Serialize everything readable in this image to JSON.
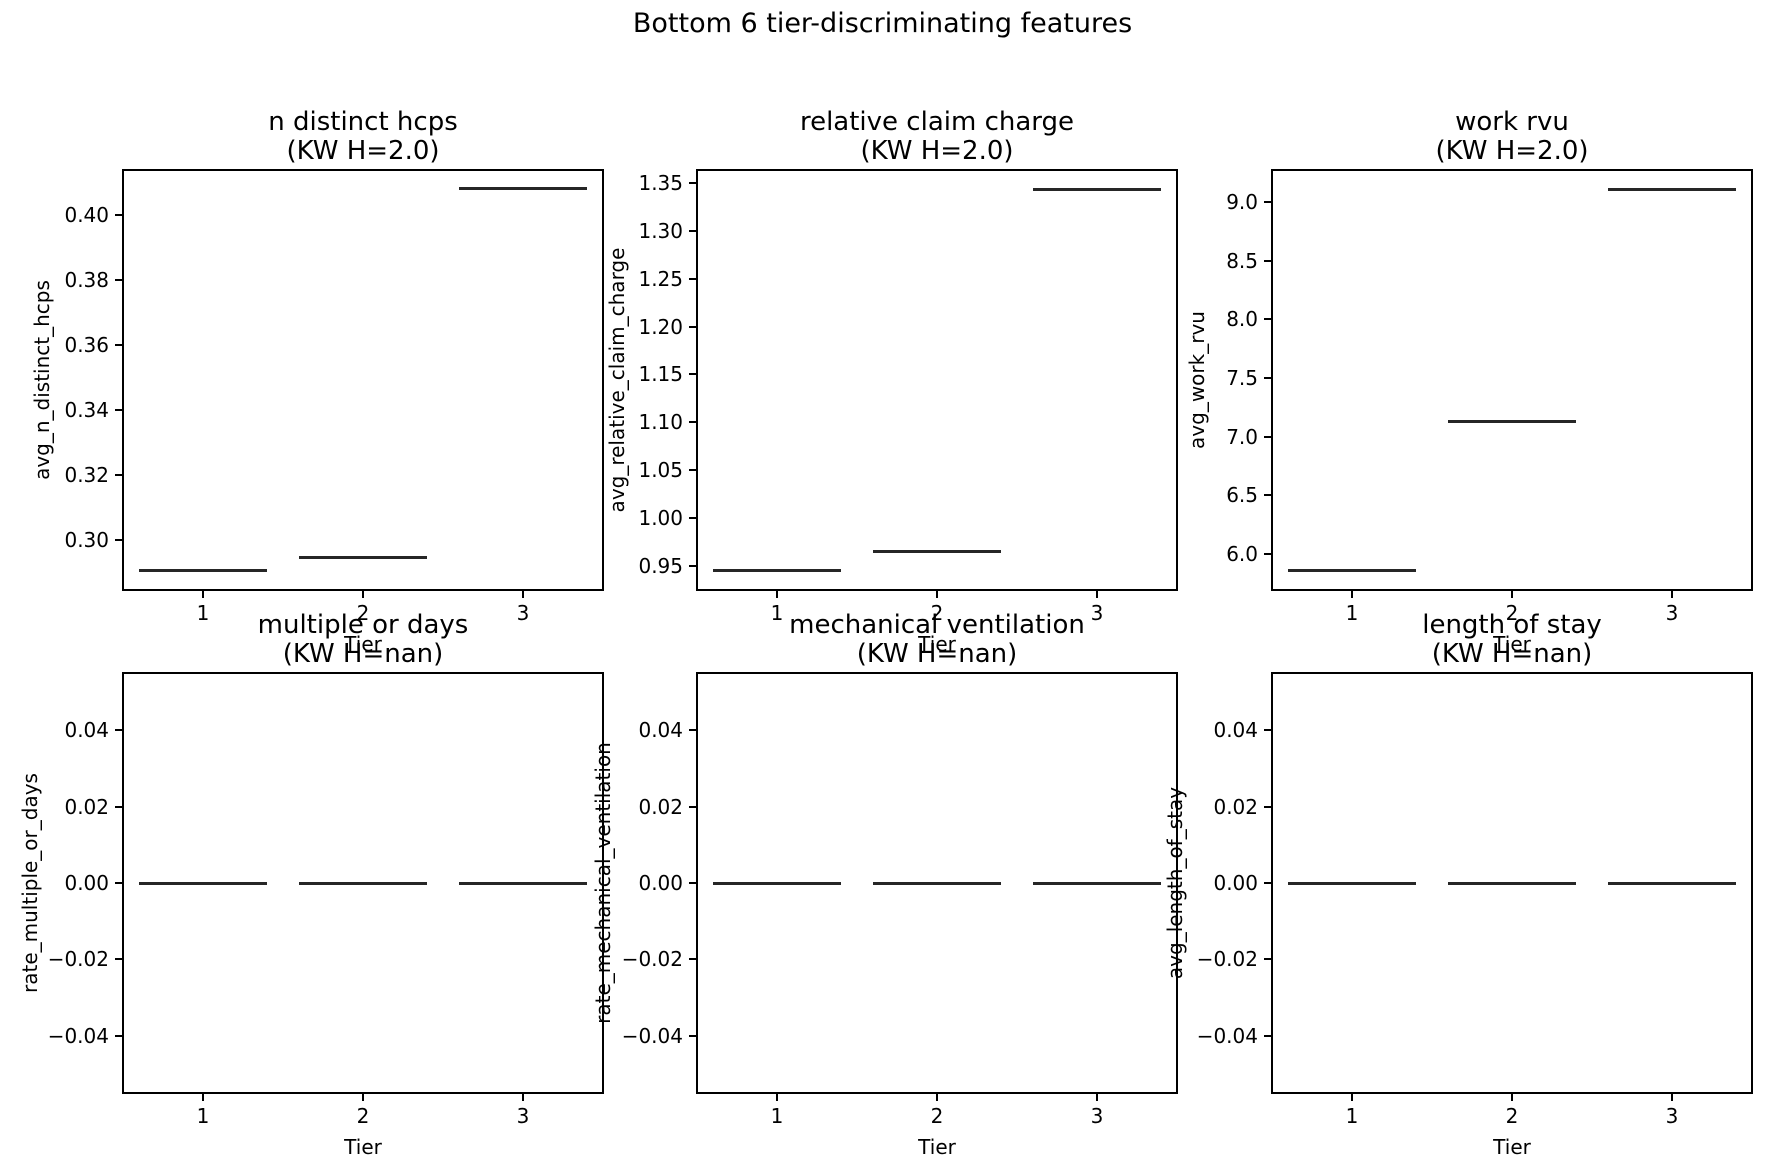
{
  "figure": {
    "suptitle": "Bottom 6 tier-discriminating features",
    "background": "#ffffff",
    "text_color": "#000000",
    "spine_color": "#000000",
    "median_line_color": "#262626"
  },
  "chart_data": [
    {
      "type": "boxplot",
      "title": "n distinct hcps",
      "subtitle": "(KW H=2.0)",
      "xlabel": "Tier",
      "ylabel": "avg_n_distinct_hcps",
      "categories": [
        1,
        2,
        3
      ],
      "xtick_labels": [
        "1",
        "2",
        "3"
      ],
      "values": [
        0.2905,
        0.2945,
        0.4083
      ],
      "ytick_values": [
        0.3,
        0.32,
        0.34,
        0.36,
        0.38,
        0.4
      ],
      "ytick_labels": [
        "0.30",
        "0.32",
        "0.34",
        "0.36",
        "0.38",
        "0.40"
      ],
      "ylim": [
        0.2846,
        0.4139
      ],
      "xlim": [
        0.5,
        3.5
      ],
      "box_half_width": 0.4,
      "grid": false,
      "legend": false
    },
    {
      "type": "boxplot",
      "title": "relative claim charge",
      "subtitle": "(KW H=2.0)",
      "xlabel": "Tier",
      "ylabel": "avg_relative_claim_charge",
      "categories": [
        1,
        2,
        3
      ],
      "xtick_labels": [
        "1",
        "2",
        "3"
      ],
      "values": [
        0.945,
        0.9655,
        1.3435
      ],
      "ytick_values": [
        0.95,
        1.0,
        1.05,
        1.1,
        1.15,
        1.2,
        1.25,
        1.3,
        1.35
      ],
      "ytick_labels": [
        "0.95",
        "1.00",
        "1.05",
        "1.10",
        "1.15",
        "1.20",
        "1.25",
        "1.30",
        "1.35"
      ],
      "ylim": [
        0.9251,
        1.3634
      ],
      "xlim": [
        0.5,
        3.5
      ],
      "box_half_width": 0.4,
      "grid": false,
      "legend": false
    },
    {
      "type": "boxplot",
      "title": "work rvu",
      "subtitle": "(KW H=2.0)",
      "xlabel": "Tier",
      "ylabel": "avg_work_rvu",
      "categories": [
        1,
        2,
        3
      ],
      "xtick_labels": [
        "1",
        "2",
        "3"
      ],
      "values": [
        5.855,
        7.13,
        9.11
      ],
      "ytick_values": [
        6.0,
        6.5,
        7.0,
        7.5,
        8.0,
        8.5,
        9.0
      ],
      "ytick_labels": [
        "6.0",
        "6.5",
        "7.0",
        "7.5",
        "8.0",
        "8.5",
        "9.0"
      ],
      "ylim": [
        5.6922,
        9.2728
      ],
      "xlim": [
        0.5,
        3.5
      ],
      "box_half_width": 0.4,
      "grid": false,
      "legend": false
    },
    {
      "type": "boxplot",
      "title": "multiple or days",
      "subtitle": "(KW H=nan)",
      "xlabel": "Tier",
      "ylabel": "rate_multiple_or_days",
      "categories": [
        1,
        2,
        3
      ],
      "xtick_labels": [
        "1",
        "2",
        "3"
      ],
      "values": [
        0.0,
        0.0,
        0.0
      ],
      "ytick_values": [
        -0.04,
        -0.02,
        0.0,
        0.02,
        0.04
      ],
      "ytick_labels": [
        "−0.04",
        "−0.02",
        "0.00",
        "0.02",
        "0.04"
      ],
      "ylim": [
        -0.055,
        0.055
      ],
      "xlim": [
        0.5,
        3.5
      ],
      "box_half_width": 0.4,
      "grid": false,
      "legend": false
    },
    {
      "type": "boxplot",
      "title": "mechanical ventilation",
      "subtitle": "(KW H=nan)",
      "xlabel": "Tier",
      "ylabel": "rate_mechanical_ventilation",
      "categories": [
        1,
        2,
        3
      ],
      "xtick_labels": [
        "1",
        "2",
        "3"
      ],
      "values": [
        0.0,
        0.0,
        0.0
      ],
      "ytick_values": [
        -0.04,
        -0.02,
        0.0,
        0.02,
        0.04
      ],
      "ytick_labels": [
        "−0.04",
        "−0.02",
        "0.00",
        "0.02",
        "0.04"
      ],
      "ylim": [
        -0.055,
        0.055
      ],
      "xlim": [
        0.5,
        3.5
      ],
      "box_half_width": 0.4,
      "grid": false,
      "legend": false
    },
    {
      "type": "boxplot",
      "title": "length of stay",
      "subtitle": "(KW H=nan)",
      "xlabel": "Tier",
      "ylabel": "avg_length_of_stay",
      "categories": [
        1,
        2,
        3
      ],
      "xtick_labels": [
        "1",
        "2",
        "3"
      ],
      "values": [
        0.0,
        0.0,
        0.0
      ],
      "ytick_values": [
        -0.04,
        -0.02,
        0.0,
        0.02,
        0.04
      ],
      "ytick_labels": [
        "−0.04",
        "−0.02",
        "0.00",
        "0.02",
        "0.04"
      ],
      "ylim": [
        -0.055,
        0.055
      ],
      "xlim": [
        0.5,
        3.5
      ],
      "box_half_width": 0.4,
      "grid": false,
      "legend": false
    }
  ]
}
